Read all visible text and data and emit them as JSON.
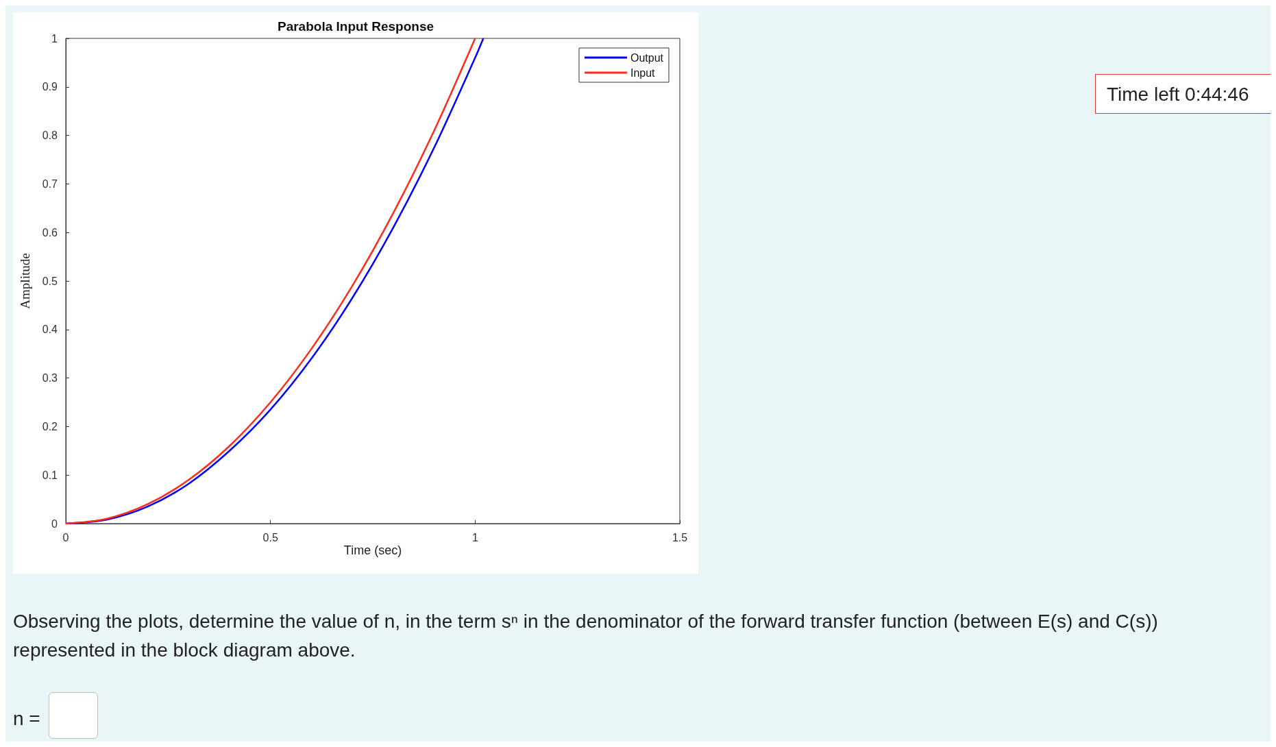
{
  "chart_data": {
    "type": "line",
    "title": "Parabola Input Response",
    "xlabel": "Time (sec)",
    "ylabel": "Amplitude",
    "x": [
      0,
      0.1,
      0.2,
      0.3,
      0.4,
      0.5,
      0.6,
      0.7,
      0.8,
      0.9,
      1.0,
      1.02
    ],
    "series": [
      {
        "name": "Output",
        "color": "#0000ff",
        "values": [
          0,
          0.008,
          0.035,
          0.082,
          0.15,
          0.235,
          0.34,
          0.465,
          0.61,
          0.775,
          0.96,
          1.0
        ]
      },
      {
        "name": "Input",
        "color": "#ff2a1a",
        "values": [
          0,
          0.01,
          0.04,
          0.09,
          0.16,
          0.25,
          0.36,
          0.49,
          0.64,
          0.81,
          1.0,
          null
        ]
      }
    ],
    "xlim": [
      0,
      1.5
    ],
    "ylim": [
      0,
      1
    ],
    "xticks": [
      0,
      0.5,
      1,
      1.5
    ],
    "yticks": [
      0,
      0.1,
      0.2,
      0.3,
      0.4,
      0.5,
      0.6,
      0.7,
      0.8,
      0.9,
      1
    ],
    "grid": false,
    "legend": "top right",
    "marker": "none",
    "line_style": "solid",
    "annotations": [
      "Time left 0:44:46",
      "Observing the plots, determine the value of n, in the term sⁿ in the denominator of the forward transfer function (between E(s) and C(s)) represented in the block diagram above.",
      "n ="
    ]
  }
}
